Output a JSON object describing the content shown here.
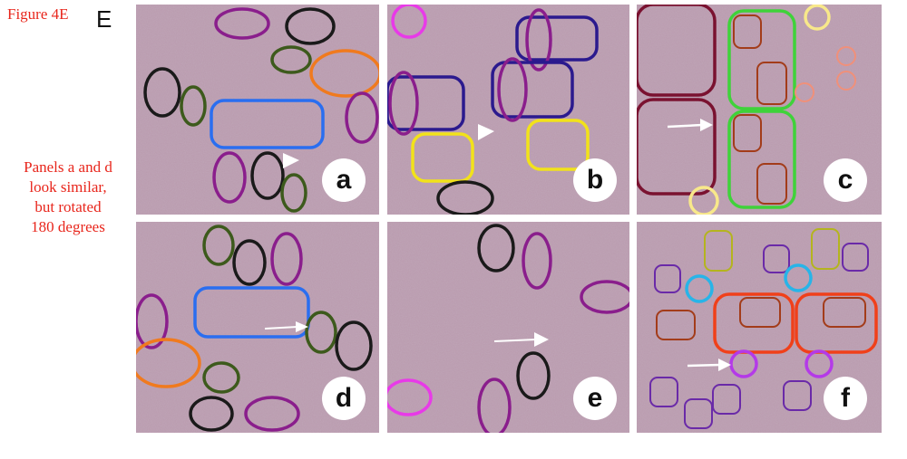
{
  "figure": {
    "label": "Figure 4E",
    "panel_group_letter": "E",
    "note_lines": [
      "Panels a and d",
      "look similar,",
      "but rotated",
      "180 degrees"
    ]
  },
  "panels": [
    {
      "id": "a",
      "letter": "a"
    },
    {
      "id": "b",
      "letter": "b"
    },
    {
      "id": "c",
      "letter": "c"
    },
    {
      "id": "d",
      "letter": "d"
    },
    {
      "id": "e",
      "letter": "e"
    },
    {
      "id": "f",
      "letter": "f"
    }
  ],
  "colors": {
    "annotation": "#e8261c",
    "tissue_base": "#b99aad",
    "circle_purple": "#8a1e8c",
    "circle_black": "#1a1a1a",
    "circle_dark_green": "#3d5a1c",
    "circle_orange": "#f07a1e",
    "circle_blue": "#2a6ef0",
    "circle_navy": "#2b1a8e",
    "circle_yellow": "#f2e21a",
    "circle_magenta": "#e83ae8",
    "circle_maroon": "#7a1230",
    "circle_green": "#3fd23a",
    "circle_brown": "#a33c1a",
    "circle_light_yellow": "#f8e88a",
    "circle_salmon": "#f0907a",
    "circle_cyan": "#28b4e8",
    "circle_olive": "#b4b41e",
    "circle_red_orange": "#f0401a",
    "circle_violet": "#6a2aa8",
    "arrow": "#ffffff"
  }
}
